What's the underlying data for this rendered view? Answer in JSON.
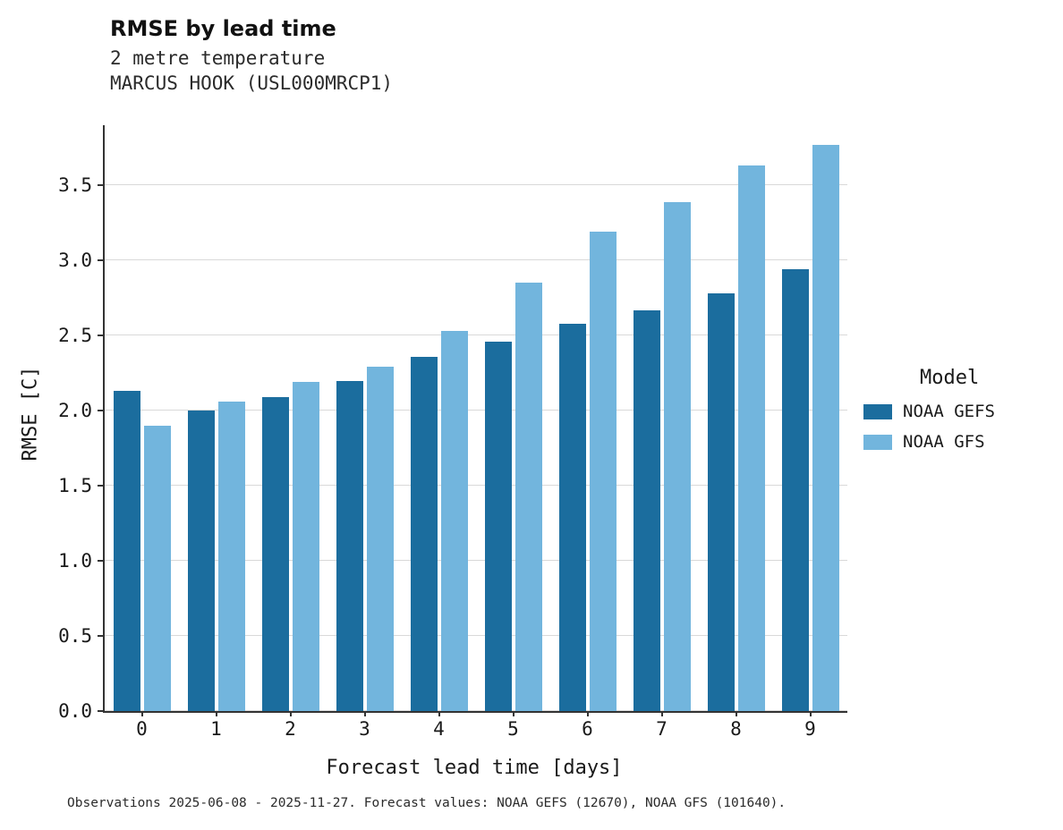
{
  "title": "RMSE by lead time",
  "subtitle1": "2 metre temperature",
  "subtitle2": "MARCUS HOOK (USL000MRCP1)",
  "caption": "Observations 2025-06-08 - 2025-11-27. Forecast values: NOAA GEFS (12670), NOAA GFS (101640).",
  "legend": {
    "title": "Model",
    "entries": [
      {
        "label": "NOAA GEFS",
        "color": "#1b6d9e"
      },
      {
        "label": "NOAA GFS",
        "color": "#72b5dd"
      }
    ]
  },
  "chart_data": {
    "type": "bar",
    "title": "RMSE by lead time",
    "subtitle": "2 metre temperature — MARCUS HOOK (USL000MRCP1)",
    "xlabel": "Forecast lead time [days]",
    "ylabel": "RMSE [C]",
    "categories": [
      "0",
      "1",
      "2",
      "3",
      "4",
      "5",
      "6",
      "7",
      "8",
      "9"
    ],
    "series": [
      {
        "name": "NOAA GEFS",
        "color": "#1b6d9e",
        "values": [
          2.13,
          2.0,
          2.09,
          2.2,
          2.36,
          2.46,
          2.58,
          2.67,
          2.78,
          2.94
        ]
      },
      {
        "name": "NOAA GFS",
        "color": "#72b5dd",
        "values": [
          1.9,
          2.06,
          2.19,
          2.29,
          2.53,
          2.85,
          3.19,
          3.39,
          3.63,
          3.77
        ]
      }
    ],
    "ylim": [
      0,
      3.9
    ],
    "yticks": [
      0.0,
      0.5,
      1.0,
      1.5,
      2.0,
      2.5,
      3.0,
      3.5
    ],
    "grid": true,
    "legend_position": "right",
    "legend_title": "Model"
  }
}
